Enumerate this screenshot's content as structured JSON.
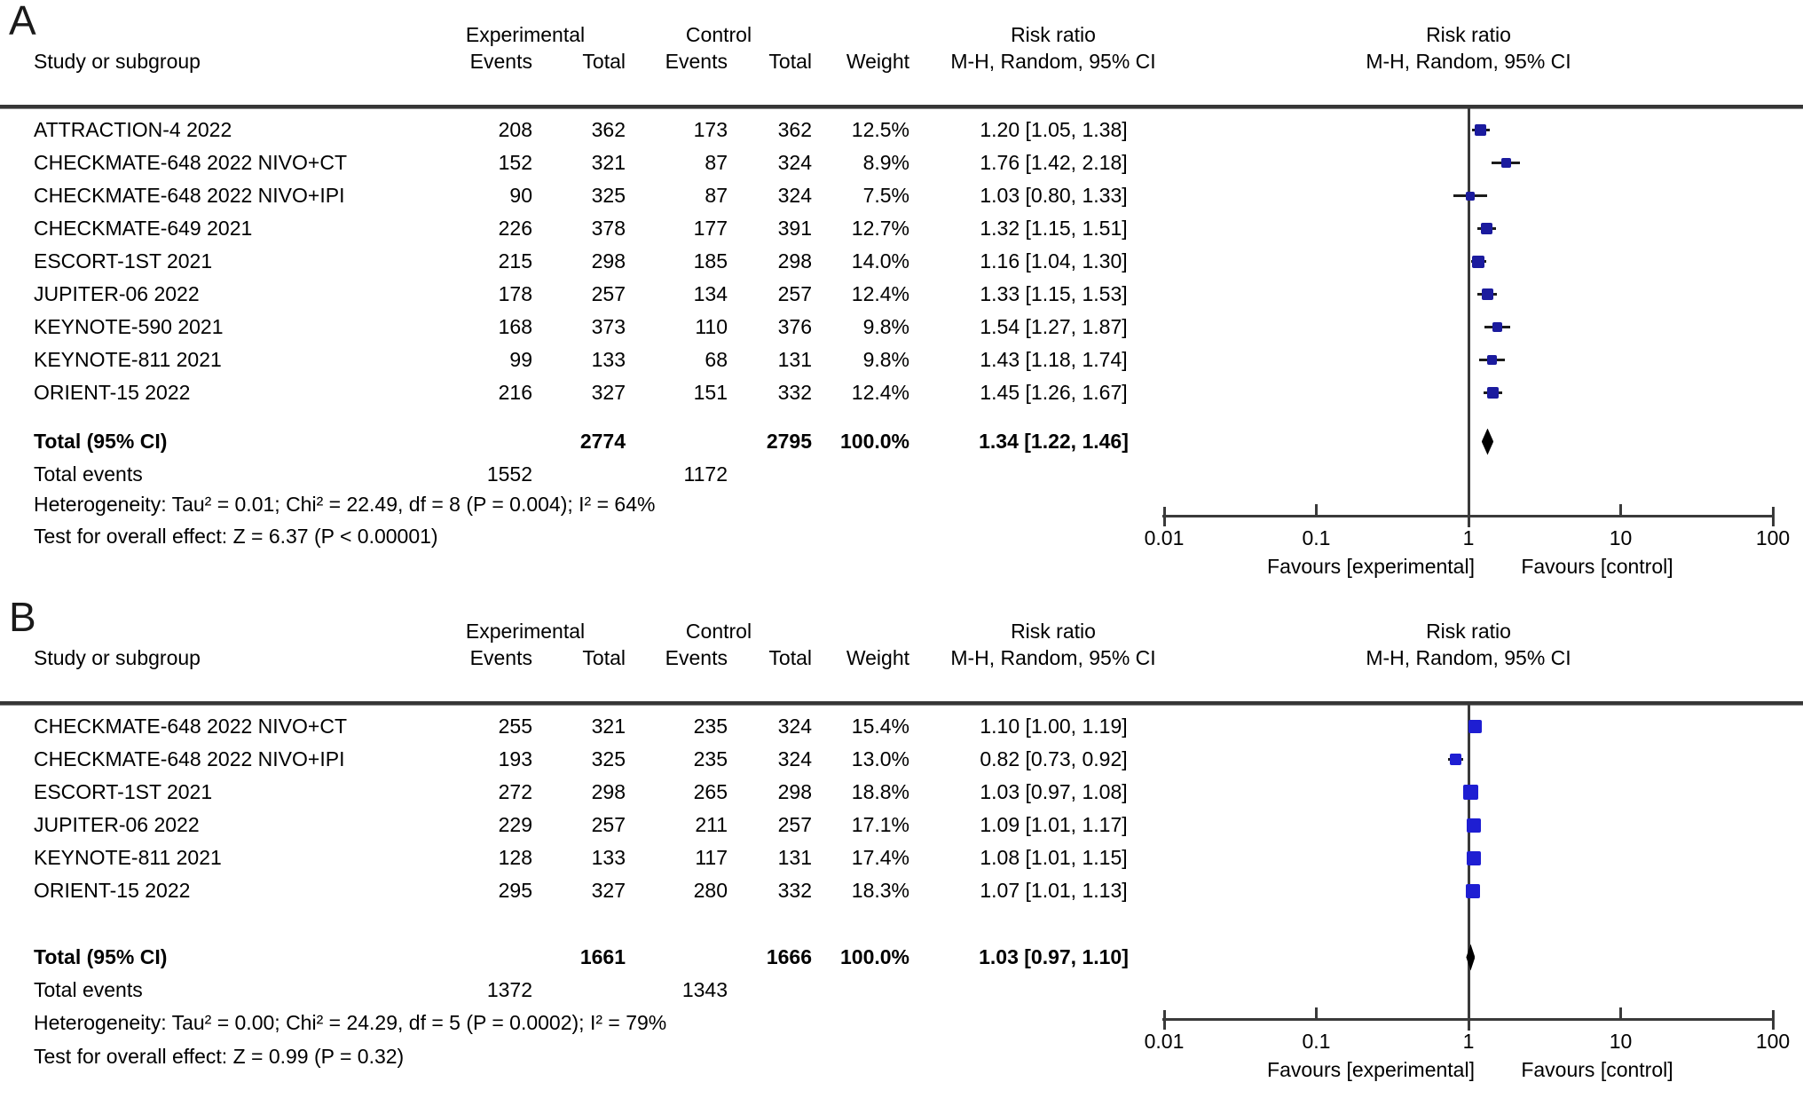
{
  "header": {
    "study": "Study or subgroup",
    "experimental": "Experimental",
    "control": "Control",
    "events": "Events",
    "total": "Total",
    "weight": "Weight",
    "risk_ratio": "Risk ratio",
    "method": "M-H, Random, 95% CI"
  },
  "chart_data": [
    {
      "type": "forest",
      "panel_label": "A",
      "effect_measure": "Risk ratio",
      "model": "M-H, Random, 95% CI",
      "marker_color": "#1b1b9e",
      "diamond_color": "#000000",
      "axis": {
        "scale": "log",
        "min": 0.01,
        "max": 100,
        "ticks": [
          0.01,
          0.1,
          1,
          10,
          100
        ],
        "tick_labels": [
          "0.01",
          "0.1",
          "1",
          "10",
          "100"
        ],
        "favours_left": "Favours [experimental]",
        "favours_right": "Favours [control]"
      },
      "studies": [
        {
          "name": "ATTRACTION-4 2022",
          "exp_events": 208,
          "exp_total": 362,
          "ctl_events": 173,
          "ctl_total": 362,
          "weight_pct": 12.5,
          "weight_label": "12.5%",
          "rr": 1.2,
          "ci_lo": 1.05,
          "ci_hi": 1.38,
          "label": "1.20 [1.05, 1.38]"
        },
        {
          "name": "CHECKMATE-648 2022 NIVO+CT",
          "exp_events": 152,
          "exp_total": 321,
          "ctl_events": 87,
          "ctl_total": 324,
          "weight_pct": 8.9,
          "weight_label": "8.9%",
          "rr": 1.76,
          "ci_lo": 1.42,
          "ci_hi": 2.18,
          "label": "1.76 [1.42, 2.18]"
        },
        {
          "name": "CHECKMATE-648 2022 NIVO+IPI",
          "exp_events": 90,
          "exp_total": 325,
          "ctl_events": 87,
          "ctl_total": 324,
          "weight_pct": 7.5,
          "weight_label": "7.5%",
          "rr": 1.03,
          "ci_lo": 0.8,
          "ci_hi": 1.33,
          "label": "1.03 [0.80, 1.33]"
        },
        {
          "name": "CHECKMATE-649 2021",
          "exp_events": 226,
          "exp_total": 378,
          "ctl_events": 177,
          "ctl_total": 391,
          "weight_pct": 12.7,
          "weight_label": "12.7%",
          "rr": 1.32,
          "ci_lo": 1.15,
          "ci_hi": 1.51,
          "label": "1.32 [1.15, 1.51]"
        },
        {
          "name": "ESCORT-1ST 2021",
          "exp_events": 215,
          "exp_total": 298,
          "ctl_events": 185,
          "ctl_total": 298,
          "weight_pct": 14.0,
          "weight_label": "14.0%",
          "rr": 1.16,
          "ci_lo": 1.04,
          "ci_hi": 1.3,
          "label": "1.16 [1.04, 1.30]"
        },
        {
          "name": "JUPITER-06 2022",
          "exp_events": 178,
          "exp_total": 257,
          "ctl_events": 134,
          "ctl_total": 257,
          "weight_pct": 12.4,
          "weight_label": "12.4%",
          "rr": 1.33,
          "ci_lo": 1.15,
          "ci_hi": 1.53,
          "label": "1.33 [1.15, 1.53]"
        },
        {
          "name": "KEYNOTE-590 2021",
          "exp_events": 168,
          "exp_total": 373,
          "ctl_events": 110,
          "ctl_total": 376,
          "weight_pct": 9.8,
          "weight_label": "9.8%",
          "rr": 1.54,
          "ci_lo": 1.27,
          "ci_hi": 1.87,
          "label": "1.54 [1.27, 1.87]"
        },
        {
          "name": "KEYNOTE-811 2021",
          "exp_events": 99,
          "exp_total": 133,
          "ctl_events": 68,
          "ctl_total": 131,
          "weight_pct": 9.8,
          "weight_label": "9.8%",
          "rr": 1.43,
          "ci_lo": 1.18,
          "ci_hi": 1.74,
          "label": "1.43 [1.18, 1.74]"
        },
        {
          "name": "ORIENT-15 2022",
          "exp_events": 216,
          "exp_total": 327,
          "ctl_events": 151,
          "ctl_total": 332,
          "weight_pct": 12.4,
          "weight_label": "12.4%",
          "rr": 1.45,
          "ci_lo": 1.26,
          "ci_hi": 1.67,
          "label": "1.45 [1.26, 1.67]"
        }
      ],
      "total": {
        "name": "Total (95% CI)",
        "exp_total": 2774,
        "ctl_total": 2795,
        "weight_label": "100.0%",
        "rr": 1.34,
        "ci_lo": 1.22,
        "ci_hi": 1.46,
        "label": "1.34 [1.22, 1.46]"
      },
      "total_events": {
        "label": "Total events",
        "exp": 1552,
        "ctl": 1172
      },
      "heterogeneity": "Heterogeneity: Tau² = 0.01; Chi² = 22.49, df = 8 (P = 0.004); I² = 64%",
      "overall_effect": "Test for overall effect: Z = 6.37 (P < 0.00001)"
    },
    {
      "type": "forest",
      "panel_label": "B",
      "effect_measure": "Risk ratio",
      "model": "M-H, Random, 95% CI",
      "marker_color": "#1e1ed2",
      "diamond_color": "#000000",
      "axis": {
        "scale": "log",
        "min": 0.01,
        "max": 100,
        "ticks": [
          0.01,
          0.1,
          1,
          10,
          100
        ],
        "tick_labels": [
          "0.01",
          "0.1",
          "1",
          "10",
          "100"
        ],
        "favours_left": "Favours [experimental]",
        "favours_right": "Favours [control]"
      },
      "studies": [
        {
          "name": "CHECKMATE-648 2022 NIVO+CT",
          "exp_events": 255,
          "exp_total": 321,
          "ctl_events": 235,
          "ctl_total": 324,
          "weight_pct": 15.4,
          "weight_label": "15.4%",
          "rr": 1.1,
          "ci_lo": 1.0,
          "ci_hi": 1.19,
          "label": "1.10 [1.00, 1.19]"
        },
        {
          "name": "CHECKMATE-648 2022 NIVO+IPI",
          "exp_events": 193,
          "exp_total": 325,
          "ctl_events": 235,
          "ctl_total": 324,
          "weight_pct": 13.0,
          "weight_label": "13.0%",
          "rr": 0.82,
          "ci_lo": 0.73,
          "ci_hi": 0.92,
          "label": "0.82 [0.73, 0.92]"
        },
        {
          "name": "ESCORT-1ST 2021",
          "exp_events": 272,
          "exp_total": 298,
          "ctl_events": 265,
          "ctl_total": 298,
          "weight_pct": 18.8,
          "weight_label": "18.8%",
          "rr": 1.03,
          "ci_lo": 0.97,
          "ci_hi": 1.08,
          "label": "1.03 [0.97, 1.08]"
        },
        {
          "name": "JUPITER-06 2022",
          "exp_events": 229,
          "exp_total": 257,
          "ctl_events": 211,
          "ctl_total": 257,
          "weight_pct": 17.1,
          "weight_label": "17.1%",
          "rr": 1.09,
          "ci_lo": 1.01,
          "ci_hi": 1.17,
          "label": "1.09 [1.01, 1.17]"
        },
        {
          "name": "KEYNOTE-811 2021",
          "exp_events": 128,
          "exp_total": 133,
          "ctl_events": 117,
          "ctl_total": 131,
          "weight_pct": 17.4,
          "weight_label": "17.4%",
          "rr": 1.08,
          "ci_lo": 1.01,
          "ci_hi": 1.15,
          "label": "1.08 [1.01, 1.15]"
        },
        {
          "name": "ORIENT-15 2022",
          "exp_events": 295,
          "exp_total": 327,
          "ctl_events": 280,
          "ctl_total": 332,
          "weight_pct": 18.3,
          "weight_label": "18.3%",
          "rr": 1.07,
          "ci_lo": 1.01,
          "ci_hi": 1.13,
          "label": "1.07 [1.01, 1.13]"
        }
      ],
      "total": {
        "name": "Total (95% CI)",
        "exp_total": 1661,
        "ctl_total": 1666,
        "weight_label": "100.0%",
        "rr": 1.03,
        "ci_lo": 0.97,
        "ci_hi": 1.1,
        "label": "1.03 [0.97, 1.10]"
      },
      "total_events": {
        "label": "Total events",
        "exp": 1372,
        "ctl": 1343
      },
      "heterogeneity": "Heterogeneity: Tau² = 0.00; Chi² = 24.29, df = 5 (P = 0.0002); I² = 79%",
      "overall_effect": "Test for overall effect: Z = 0.99 (P = 0.32)"
    }
  ]
}
